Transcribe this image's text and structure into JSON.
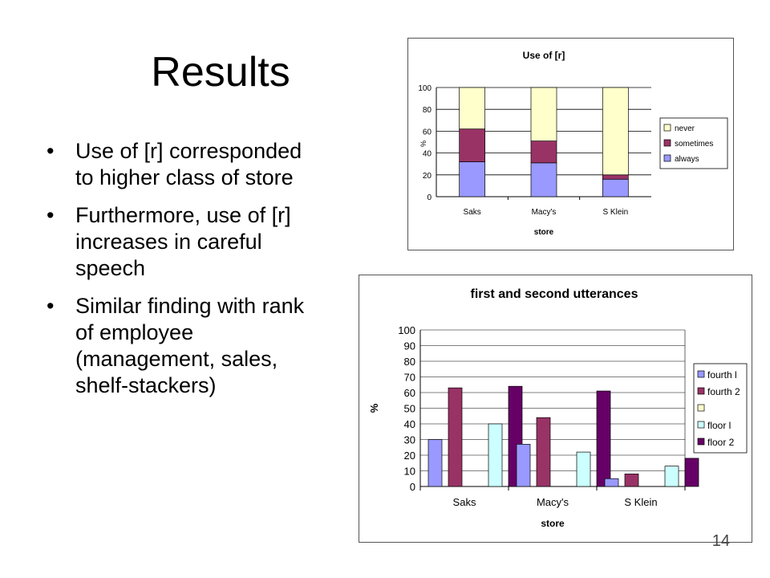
{
  "slide": {
    "title": "Results",
    "bullets": [
      "Use of [r] corresponded to higher class of store",
      "Furthermore, use of [r] increases in careful speech",
      "Similar finding with rank of employee (management, sales, shelf-stackers)"
    ],
    "bullet_glyph": "•",
    "page_number": "14"
  },
  "chart_data": [
    {
      "type": "bar",
      "stacked": true,
      "title": "Use of [r]",
      "xlabel": "store",
      "ylabel": "%",
      "categories": [
        "Saks",
        "Macy's",
        "S Klein"
      ],
      "ylim": [
        0,
        100
      ],
      "yticks": [
        0,
        20,
        40,
        60,
        80,
        100
      ],
      "grid": true,
      "legend_position": "right",
      "series": [
        {
          "name": "always",
          "values": [
            32,
            31,
            16
          ],
          "color": "#9999ff"
        },
        {
          "name": "sometimes",
          "values": [
            30,
            20,
            4
          ],
          "color": "#993366"
        },
        {
          "name": "never",
          "values": [
            38,
            49,
            80
          ],
          "color": "#ffffcc"
        }
      ],
      "legend_order": [
        "never",
        "sometimes",
        "always"
      ]
    },
    {
      "type": "bar",
      "stacked": false,
      "title": "first and second utterances",
      "xlabel": "store",
      "ylabel": "%",
      "categories": [
        "Saks",
        "Macy's",
        "S Klein"
      ],
      "ylim": [
        0,
        100
      ],
      "yticks": [
        0,
        10,
        20,
        30,
        40,
        50,
        60,
        70,
        80,
        90,
        100
      ],
      "grid": true,
      "legend_position": "right",
      "series": [
        {
          "name": "fourth l",
          "values": [
            30,
            27,
            5
          ],
          "color": "#9999ff"
        },
        {
          "name": "fourth 2",
          "values": [
            63,
            44,
            8
          ],
          "color": "#993366"
        },
        {
          "name": "",
          "values": [
            0,
            0,
            0
          ],
          "color": "#ffffcc"
        },
        {
          "name": "floor l",
          "values": [
            40,
            22,
            13
          ],
          "color": "#ccffff"
        },
        {
          "name": "floor 2",
          "values": [
            64,
            61,
            18
          ],
          "color": "#660066"
        }
      ]
    }
  ]
}
